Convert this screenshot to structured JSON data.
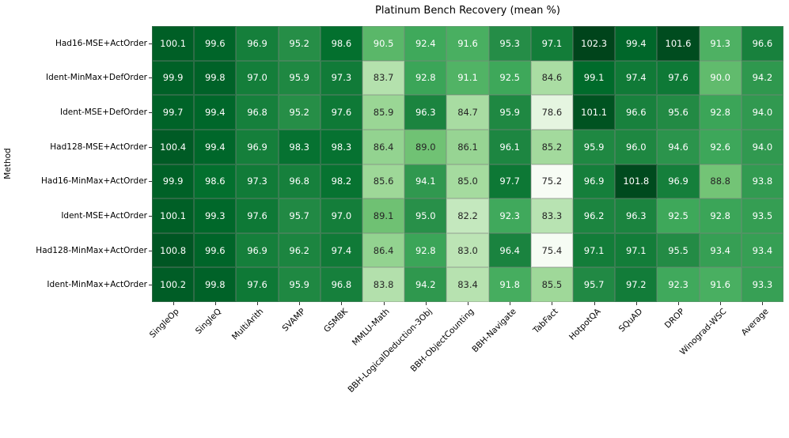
{
  "chart_data": {
    "type": "heatmap",
    "title": "Platinum Bench Recovery (mean %)",
    "ylabel": "Method",
    "rows": [
      "Had16-MSE+ActOrder",
      "Ident-MinMax+DefOrder",
      "Ident-MSE+DefOrder",
      "Had128-MSE+ActOrder",
      "Had16-MinMax+ActOrder",
      "Ident-MSE+ActOrder",
      "Had128-MinMax+ActOrder",
      "Ident-MinMax+ActOrder"
    ],
    "columns": [
      "SingleOp",
      "SingleQ",
      "MultiArith",
      "SVAMP",
      "GSM8K",
      "MMLU-Math",
      "BBH-LogicalDeduction-3Obj",
      "BBH-ObjectCounting",
      "BBH-Navigate",
      "TabFact",
      "HotpotQA",
      "SQuAD",
      "DROP",
      "Winograd-WSC",
      "Average"
    ],
    "values": [
      [
        100.1,
        99.6,
        96.9,
        95.2,
        98.6,
        90.5,
        92.4,
        91.6,
        95.3,
        97.1,
        102.3,
        99.4,
        101.6,
        91.3,
        96.6
      ],
      [
        99.9,
        99.8,
        97.0,
        95.9,
        97.3,
        83.7,
        92.8,
        91.1,
        92.5,
        84.6,
        99.1,
        97.4,
        97.6,
        90.0,
        94.2
      ],
      [
        99.7,
        99.4,
        96.8,
        95.2,
        97.6,
        85.9,
        96.3,
        84.7,
        95.9,
        78.6,
        101.1,
        96.6,
        95.6,
        92.8,
        94.0
      ],
      [
        100.4,
        99.4,
        96.9,
        98.3,
        98.3,
        86.4,
        89.0,
        86.1,
        96.1,
        85.2,
        95.9,
        96.0,
        94.6,
        92.6,
        94.0
      ],
      [
        99.9,
        98.6,
        97.3,
        96.8,
        98.2,
        85.6,
        94.1,
        85.0,
        97.7,
        75.2,
        96.9,
        101.8,
        96.9,
        88.8,
        93.8
      ],
      [
        100.1,
        99.3,
        97.6,
        95.7,
        97.0,
        89.1,
        95.0,
        82.2,
        92.3,
        83.3,
        96.2,
        96.3,
        92.5,
        92.8,
        93.5
      ],
      [
        100.8,
        99.6,
        96.9,
        96.2,
        97.4,
        86.4,
        92.8,
        83.0,
        96.4,
        75.4,
        97.1,
        97.1,
        95.5,
        93.4,
        93.4
      ],
      [
        100.2,
        99.8,
        97.6,
        95.9,
        96.8,
        83.8,
        94.2,
        83.4,
        91.8,
        85.5,
        95.7,
        97.2,
        92.3,
        91.6,
        93.3
      ]
    ],
    "vmin": 75.2,
    "vmax": 102.3,
    "colormap": "Greens",
    "colormap_stops": [
      "#f7fcf5",
      "#e5f5e0",
      "#c7e9c0",
      "#a1d99b",
      "#74c476",
      "#41ab5d",
      "#238b45",
      "#006d2c",
      "#00441b"
    ],
    "annotation_text_dark": "#262626",
    "annotation_text_light": "#ffffff",
    "grid_line_color": "#808080",
    "grid": true,
    "legend_position": "none"
  }
}
